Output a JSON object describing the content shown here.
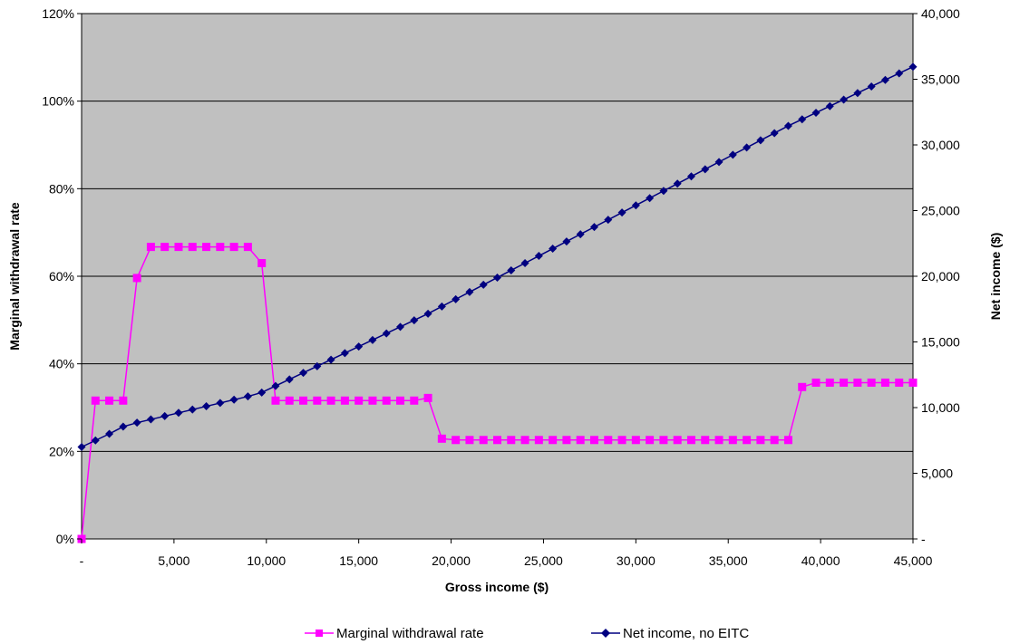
{
  "chart_data": {
    "type": "line",
    "xlabel": "Gross income ($)",
    "ylabel_left": "Marginal withdrawal rate",
    "ylabel_right": "Net income ($)",
    "xlim": [
      0,
      45000
    ],
    "ylim_left": [
      0,
      1.2
    ],
    "ylim_right": [
      0,
      40000
    ],
    "x_ticks": [
      0,
      5000,
      10000,
      15000,
      20000,
      25000,
      30000,
      35000,
      40000,
      45000
    ],
    "x_tick_labels": [
      "-",
      "5,000",
      "10,000",
      "15,000",
      "20,000",
      "25,000",
      "30,000",
      "35,000",
      "40,000",
      "45,000"
    ],
    "y_left_ticks": [
      0,
      0.2,
      0.4,
      0.6,
      0.8,
      1.0,
      1.2
    ],
    "y_left_tick_labels": [
      "0%",
      "20%",
      "40%",
      "60%",
      "80%",
      "100%",
      "120%"
    ],
    "y_right_ticks": [
      0,
      5000,
      10000,
      15000,
      20000,
      25000,
      30000,
      35000,
      40000
    ],
    "y_right_tick_labels": [
      "-",
      "5,000",
      "10,000",
      "15,000",
      "20,000",
      "25,000",
      "30,000",
      "35,000",
      "40,000"
    ],
    "grid": "horizontal",
    "plot_background": "#c0c0c0",
    "legend_position": "bottom",
    "series": [
      {
        "name": "Marginal withdrawal rate",
        "axis": "left",
        "color": "#ff00ff",
        "marker": "square",
        "x": [
          0,
          750,
          1500,
          2250,
          3000,
          3750,
          4500,
          5250,
          6000,
          6750,
          7500,
          8250,
          9000,
          9750,
          10500,
          11250,
          12000,
          12750,
          13500,
          14250,
          15000,
          15750,
          16500,
          17250,
          18000,
          18750,
          19500,
          20250,
          21000,
          21750,
          22500,
          23250,
          24000,
          24750,
          25500,
          26250,
          27000,
          27750,
          28500,
          29250,
          30000,
          30750,
          31500,
          32250,
          33000,
          33750,
          34500,
          35250,
          36000,
          36750,
          37500,
          38250,
          39000,
          39750,
          40500,
          41250,
          42000,
          42750,
          43500,
          44250,
          45000
        ],
        "values": [
          0.0,
          0.316,
          0.316,
          0.316,
          0.596,
          0.667,
          0.667,
          0.667,
          0.667,
          0.667,
          0.667,
          0.667,
          0.667,
          0.63,
          0.316,
          0.316,
          0.316,
          0.316,
          0.316,
          0.316,
          0.316,
          0.316,
          0.316,
          0.316,
          0.316,
          0.322,
          0.229,
          0.226,
          0.226,
          0.226,
          0.226,
          0.226,
          0.226,
          0.226,
          0.226,
          0.226,
          0.226,
          0.226,
          0.226,
          0.226,
          0.226,
          0.226,
          0.226,
          0.226,
          0.226,
          0.226,
          0.226,
          0.226,
          0.226,
          0.226,
          0.226,
          0.226,
          0.347,
          0.357,
          0.357,
          0.357,
          0.357,
          0.357,
          0.357,
          0.357,
          0.357
        ]
      },
      {
        "name": "Net income, no EITC",
        "axis": "right",
        "color": "#000080",
        "marker": "diamond",
        "x": [
          0,
          750,
          1500,
          2250,
          3000,
          3750,
          4500,
          5250,
          6000,
          6750,
          7500,
          8250,
          9000,
          9750,
          10500,
          11250,
          12000,
          12750,
          13500,
          14250,
          15000,
          15750,
          16500,
          17250,
          18000,
          18750,
          19500,
          20250,
          21000,
          21750,
          22500,
          23250,
          24000,
          24750,
          25500,
          26250,
          27000,
          27750,
          28500,
          29250,
          30000,
          30750,
          31500,
          32250,
          33000,
          33750,
          34500,
          35250,
          36000,
          36750,
          37500,
          38250,
          39000,
          39750,
          40500,
          41250,
          42000,
          42750,
          43500,
          44250,
          45000
        ],
        "values": [
          7000,
          7500,
          8000,
          8550,
          8850,
          9100,
          9350,
          9600,
          9850,
          10100,
          10350,
          10600,
          10850,
          11150,
          11650,
          12150,
          12650,
          13150,
          13650,
          14150,
          14650,
          15150,
          15650,
          16150,
          16650,
          17150,
          17700,
          18250,
          18800,
          19350,
          19900,
          20450,
          21000,
          21550,
          22100,
          22650,
          23200,
          23750,
          24300,
          24850,
          25400,
          25950,
          26500,
          27050,
          27600,
          28150,
          28700,
          29250,
          29800,
          30350,
          30900,
          31450,
          31950,
          32450,
          32950,
          33450,
          33950,
          34450,
          34950,
          35450,
          35950
        ]
      }
    ]
  }
}
